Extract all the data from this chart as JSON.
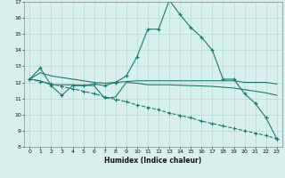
{
  "xlabel": "Humidex (Indice chaleur)",
  "background_color": "#d7f0ee",
  "grid_color": "#b8d8d4",
  "line_color": "#1a7a6e",
  "xlim": [
    -0.5,
    23.5
  ],
  "ylim": [
    8,
    17
  ],
  "yticks": [
    8,
    9,
    10,
    11,
    12,
    13,
    14,
    15,
    16,
    17
  ],
  "xticks": [
    0,
    1,
    2,
    3,
    4,
    5,
    6,
    7,
    8,
    9,
    10,
    11,
    12,
    13,
    14,
    15,
    16,
    17,
    18,
    19,
    20,
    21,
    22,
    23
  ],
  "series1_x": [
    0,
    1,
    2,
    3,
    4,
    5,
    6,
    7,
    8,
    9,
    10,
    11,
    12,
    13,
    14,
    15,
    16,
    17,
    18,
    19,
    20,
    21,
    22,
    23
  ],
  "series1_y": [
    12.2,
    12.9,
    11.8,
    11.2,
    11.8,
    11.8,
    11.9,
    11.8,
    12.0,
    12.4,
    13.6,
    15.3,
    15.3,
    17.1,
    16.2,
    15.4,
    14.8,
    14.0,
    12.2,
    12.2,
    11.3,
    10.7,
    9.8,
    8.5
  ],
  "series2_x": [
    0,
    1,
    2,
    3,
    4,
    5,
    6,
    7,
    8,
    9,
    10,
    11,
    12,
    13,
    14,
    15,
    16,
    17,
    18,
    19,
    20,
    21,
    22,
    23
  ],
  "series2_y": [
    12.2,
    12.6,
    12.4,
    12.3,
    12.2,
    12.1,
    12.0,
    11.95,
    12.0,
    12.05,
    12.1,
    12.1,
    12.1,
    12.1,
    12.1,
    12.1,
    12.1,
    12.1,
    12.1,
    12.1,
    12.0,
    12.0,
    12.0,
    11.9
  ],
  "series3_x": [
    0,
    1,
    2,
    3,
    4,
    5,
    6,
    7,
    8,
    9,
    10,
    11,
    12,
    13,
    14,
    15,
    16,
    17,
    18,
    19,
    20,
    21,
    22,
    23
  ],
  "series3_y": [
    12.2,
    12.05,
    11.9,
    11.75,
    11.6,
    11.45,
    11.3,
    11.1,
    10.95,
    10.8,
    10.6,
    10.45,
    10.3,
    10.1,
    9.95,
    9.8,
    9.6,
    9.45,
    9.3,
    9.15,
    9.0,
    8.85,
    8.7,
    8.5
  ],
  "series4_x": [
    0,
    1,
    2,
    3,
    4,
    5,
    6,
    7,
    8,
    9,
    10,
    11,
    12,
    13,
    14,
    15,
    16,
    17,
    18,
    19,
    20,
    21,
    22,
    23
  ],
  "series4_y": [
    12.2,
    12.1,
    11.85,
    11.85,
    11.85,
    11.82,
    11.8,
    11.0,
    11.1,
    12.0,
    11.95,
    11.85,
    11.85,
    11.85,
    11.82,
    11.8,
    11.78,
    11.75,
    11.7,
    11.65,
    11.55,
    11.45,
    11.35,
    11.2
  ]
}
